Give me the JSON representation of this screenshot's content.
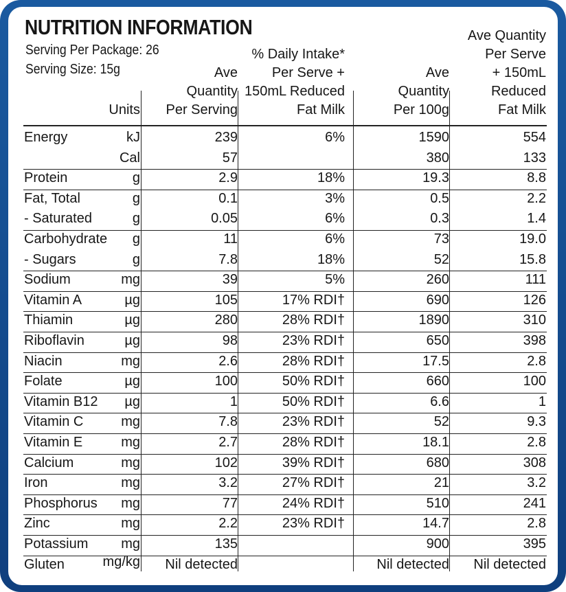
{
  "title": "NUTRITION INFORMATION",
  "serving_per_package": "Serving Per Package: 26",
  "serving_size": "Serving Size: 15g",
  "headers": {
    "units": "Units",
    "col1": "Ave\nQuantity\nPer Serving",
    "col2": "% Daily Intake*\nPer Serve +\n150mL Reduced\nFat Milk",
    "col3": "Ave\nQuantity\nPer 100g",
    "col4": "Ave Quantity\nPer Serve\n+ 150mL\nReduced\nFat Milk"
  },
  "rows": [
    {
      "name": "Energy",
      "unit": "kJ",
      "per_serving": "239",
      "daily_intake": "6%",
      "per_100g": "1590",
      "with_milk": "554"
    },
    {
      "name": "",
      "unit": "Cal",
      "per_serving": "57",
      "daily_intake": "",
      "per_100g": "380",
      "with_milk": "133"
    },
    {
      "name": "Protein",
      "unit": "g",
      "per_serving": "2.9",
      "daily_intake": "18%",
      "per_100g": "19.3",
      "with_milk": "8.8"
    },
    {
      "name": "Fat, Total",
      "unit": "g",
      "per_serving": "0.1",
      "daily_intake": "3%",
      "per_100g": "0.5",
      "with_milk": "2.2"
    },
    {
      "name": "- Saturated",
      "unit": "g",
      "per_serving": "0.05",
      "daily_intake": "6%",
      "per_100g": "0.3",
      "with_milk": "1.4"
    },
    {
      "name": "Carbohydrate",
      "unit": "g",
      "per_serving": "11",
      "daily_intake": "6%",
      "per_100g": "73",
      "with_milk": "19.0"
    },
    {
      "name": "- Sugars",
      "unit": "g",
      "per_serving": "7.8",
      "daily_intake": "18%",
      "per_100g": "52",
      "with_milk": "15.8"
    },
    {
      "name": "Sodium",
      "unit": "mg",
      "per_serving": "39",
      "daily_intake": "5%",
      "per_100g": "260",
      "with_milk": "111"
    },
    {
      "name": "Vitamin A",
      "unit": "µg",
      "per_serving": "105",
      "daily_intake": "17% RDI†",
      "per_100g": "690",
      "with_milk": "126"
    },
    {
      "name": "Thiamin",
      "unit": "µg",
      "per_serving": "280",
      "daily_intake": "28% RDI†",
      "per_100g": "1890",
      "with_milk": "310"
    },
    {
      "name": "Riboflavin",
      "unit": "µg",
      "per_serving": "98",
      "daily_intake": "23% RDI†",
      "per_100g": "650",
      "with_milk": "398"
    },
    {
      "name": "Niacin",
      "unit": "mg",
      "per_serving": "2.6",
      "daily_intake": "28% RDI†",
      "per_100g": "17.5",
      "with_milk": "2.8"
    },
    {
      "name": "Folate",
      "unit": "µg",
      "per_serving": "100",
      "daily_intake": "50% RDI†",
      "per_100g": "660",
      "with_milk": "100"
    },
    {
      "name": "Vitamin B12",
      "unit": "µg",
      "per_serving": "1",
      "daily_intake": "50% RDI†",
      "per_100g": "6.6",
      "with_milk": "1"
    },
    {
      "name": "Vitamin C",
      "unit": "mg",
      "per_serving": "7.8",
      "daily_intake": "23% RDI†",
      "per_100g": "52",
      "with_milk": "9.3"
    },
    {
      "name": "Vitamin E",
      "unit": "mg",
      "per_serving": "2.7",
      "daily_intake": "28% RDI†",
      "per_100g": "18.1",
      "with_milk": "2.8"
    },
    {
      "name": "Calcium",
      "unit": "mg",
      "per_serving": "102",
      "daily_intake": "39% RDI†",
      "per_100g": "680",
      "with_milk": "308"
    },
    {
      "name": "Iron",
      "unit": "mg",
      "per_serving": "3.2",
      "daily_intake": "27% RDI†",
      "per_100g": "21",
      "with_milk": "3.2"
    },
    {
      "name": "Phosphorus",
      "unit": "mg",
      "per_serving": "77",
      "daily_intake": "24% RDI†",
      "per_100g": "510",
      "with_milk": "241"
    },
    {
      "name": "Zinc",
      "unit": "mg",
      "per_serving": "2.2",
      "daily_intake": "23% RDI†",
      "per_100g": "14.7",
      "with_milk": "2.8"
    },
    {
      "name": "Potassium",
      "unit": "mg",
      "per_serving": "135",
      "daily_intake": "",
      "per_100g": "900",
      "with_milk": "395"
    },
    {
      "name": "Gluten",
      "unit": "mg/kg",
      "per_serving": "Nil detected",
      "daily_intake": "",
      "per_100g": "Nil detected",
      "with_milk": "Nil detected"
    }
  ],
  "colors": {
    "frame": "#15508f",
    "text": "#161616"
  }
}
